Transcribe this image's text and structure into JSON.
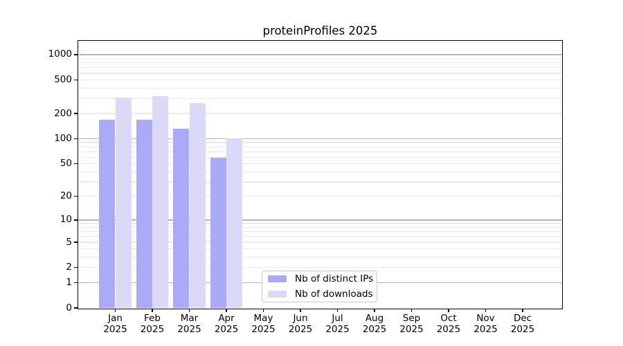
{
  "title": "proteinProfiles 2025",
  "colors": {
    "distinct_ips": "#aaaaf8",
    "downloads": "#dadaf8",
    "major_grid": "#b4b4b4",
    "minor_grid": "#e9e9e9",
    "axis_frame": "#000000",
    "legend_border": "#c9c9c9"
  },
  "legend": {
    "items": [
      {
        "label": "Nb of distinct IPs"
      },
      {
        "label": "Nb of downloads"
      }
    ]
  },
  "chart_data": {
    "type": "bar",
    "title": "proteinProfiles 2025",
    "year": "2025",
    "categories": [
      "Jan",
      "Feb",
      "Mar",
      "Apr",
      "May",
      "Jun",
      "Jul",
      "Aug",
      "Sep",
      "Oct",
      "Nov",
      "Dec"
    ],
    "series": [
      {
        "name": "Nb of distinct IPs",
        "color": "#aaaaf8",
        "values": [
          170,
          168,
          132,
          59,
          null,
          null,
          null,
          null,
          null,
          null,
          null,
          null
        ]
      },
      {
        "name": "Nb of downloads",
        "color": "#dadaf8",
        "values": [
          310,
          320,
          266,
          100,
          null,
          null,
          null,
          null,
          null,
          null,
          null,
          null
        ]
      }
    ],
    "xlabel": "",
    "ylabel": "",
    "yscale": "log1p",
    "yticks": [
      1000,
      500,
      200,
      100,
      50,
      20,
      10,
      5,
      2,
      1,
      0
    ],
    "ylim": [
      0,
      1430
    ],
    "grid": "horizontal: dark lines at decades, light minor log lines",
    "legend_position": "inside lower-center"
  }
}
